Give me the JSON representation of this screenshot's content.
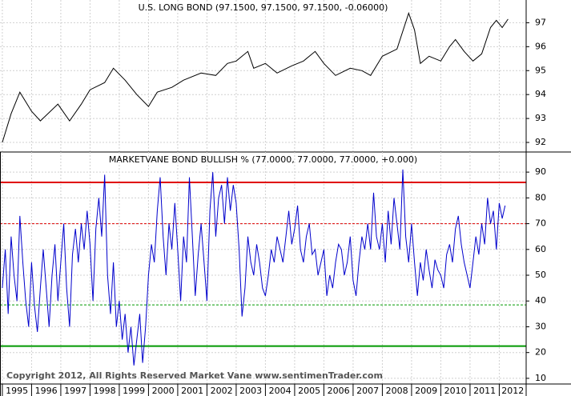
{
  "chart_data": [
    {
      "type": "line",
      "title": "U.S. LONG BOND (97.1500, 97.1500, 97.1500, -0.06000)",
      "x": [
        1995.0,
        1995.3,
        1995.6,
        1996.0,
        1996.3,
        1996.9,
        1997.3,
        1997.7,
        1998.0,
        1998.5,
        1998.8,
        1999.2,
        1999.6,
        2000.0,
        2000.3,
        2000.8,
        2001.2,
        2001.8,
        2002.3,
        2002.7,
        2003.0,
        2003.4,
        2003.6,
        2004.0,
        2004.4,
        2004.9,
        2005.3,
        2005.7,
        2006.0,
        2006.4,
        2006.9,
        2007.3,
        2007.6,
        2008.0,
        2008.5,
        2008.9,
        2009.1,
        2009.3,
        2009.6,
        2010.0,
        2010.3,
        2010.5,
        2010.8,
        2011.1,
        2011.4,
        2011.7,
        2011.9,
        2012.1,
        2012.3
      ],
      "values": [
        92.0,
        93.2,
        94.1,
        93.3,
        92.9,
        93.6,
        92.9,
        93.6,
        94.2,
        94.5,
        95.1,
        94.6,
        94.0,
        93.5,
        94.1,
        94.3,
        94.6,
        94.9,
        94.8,
        95.3,
        95.4,
        95.8,
        95.1,
        95.3,
        94.9,
        95.2,
        95.4,
        95.8,
        95.3,
        94.8,
        95.1,
        95.0,
        94.8,
        95.6,
        95.9,
        97.4,
        96.7,
        95.3,
        95.6,
        95.4,
        96.0,
        96.3,
        95.8,
        95.4,
        95.7,
        96.8,
        97.1,
        96.8,
        97.15
      ],
      "color": "#000000",
      "xlim": [
        1994.92,
        2012.92
      ],
      "xticks": [
        1995,
        1996,
        1997,
        1998,
        1999,
        2000,
        2001,
        2002,
        2003,
        2004,
        2005,
        2006,
        2007,
        2008,
        2009,
        2010,
        2011,
        2012
      ],
      "ylim": [
        91.6,
        97.95
      ],
      "yticks": [
        92,
        93,
        94,
        95,
        96,
        97
      ],
      "grid": true
    },
    {
      "type": "line",
      "title": "MARKETVANE BOND BULLISH % (77.0000, 77.0000, 77.0000, +0.000)",
      "x": [
        1995.0,
        1995.1,
        1995.2,
        1995.3,
        1995.4,
        1995.5,
        1995.6,
        1995.7,
        1995.8,
        1995.9,
        1996.0,
        1996.1,
        1996.2,
        1996.3,
        1996.4,
        1996.5,
        1996.6,
        1996.7,
        1996.8,
        1996.9,
        1997.0,
        1997.1,
        1997.2,
        1997.3,
        1997.4,
        1997.5,
        1997.6,
        1997.7,
        1997.8,
        1997.9,
        1998.0,
        1998.1,
        1998.2,
        1998.3,
        1998.4,
        1998.5,
        1998.6,
        1998.7,
        1998.8,
        1998.9,
        1999.0,
        1999.1,
        1999.2,
        1999.3,
        1999.4,
        1999.5,
        1999.6,
        1999.7,
        1999.8,
        1999.9,
        2000.0,
        2000.1,
        2000.2,
        2000.3,
        2000.4,
        2000.5,
        2000.6,
        2000.7,
        2000.8,
        2000.9,
        2001.0,
        2001.1,
        2001.2,
        2001.3,
        2001.4,
        2001.5,
        2001.6,
        2001.7,
        2001.8,
        2001.9,
        2002.0,
        2002.1,
        2002.2,
        2002.3,
        2002.4,
        2002.5,
        2002.6,
        2002.7,
        2002.8,
        2002.9,
        2003.0,
        2003.1,
        2003.2,
        2003.3,
        2003.4,
        2003.5,
        2003.6,
        2003.7,
        2003.8,
        2003.9,
        2004.0,
        2004.1,
        2004.2,
        2004.3,
        2004.4,
        2004.5,
        2004.6,
        2004.7,
        2004.8,
        2004.9,
        2005.0,
        2005.1,
        2005.2,
        2005.3,
        2005.4,
        2005.5,
        2005.6,
        2005.7,
        2005.8,
        2005.9,
        2006.0,
        2006.1,
        2006.2,
        2006.3,
        2006.4,
        2006.5,
        2006.6,
        2006.7,
        2006.8,
        2006.9,
        2007.0,
        2007.1,
        2007.2,
        2007.3,
        2007.4,
        2007.5,
        2007.6,
        2007.7,
        2007.8,
        2007.9,
        2008.0,
        2008.1,
        2008.2,
        2008.3,
        2008.4,
        2008.5,
        2008.6,
        2008.7,
        2008.8,
        2008.9,
        2009.0,
        2009.1,
        2009.2,
        2009.3,
        2009.4,
        2009.5,
        2009.6,
        2009.7,
        2009.8,
        2009.9,
        2010.0,
        2010.1,
        2010.2,
        2010.3,
        2010.4,
        2010.5,
        2010.6,
        2010.7,
        2010.8,
        2010.9,
        2011.0,
        2011.1,
        2011.2,
        2011.3,
        2011.4,
        2011.5,
        2011.6,
        2011.7,
        2011.8,
        2011.9,
        2012.0,
        2012.1,
        2012.2
      ],
      "values": [
        45,
        60,
        35,
        65,
        50,
        40,
        73,
        55,
        40,
        30,
        55,
        38,
        28,
        45,
        60,
        45,
        30,
        50,
        62,
        40,
        55,
        70,
        45,
        30,
        58,
        68,
        55,
        70,
        60,
        75,
        62,
        40,
        68,
        80,
        65,
        89,
        50,
        35,
        55,
        30,
        40,
        25,
        35,
        20,
        30,
        15,
        25,
        35,
        16,
        30,
        50,
        62,
        55,
        75,
        88,
        65,
        50,
        70,
        60,
        78,
        60,
        40,
        65,
        55,
        88,
        65,
        42,
        58,
        70,
        55,
        40,
        75,
        90,
        65,
        80,
        85,
        70,
        88,
        75,
        85,
        78,
        60,
        34,
        45,
        65,
        55,
        50,
        62,
        55,
        45,
        42,
        50,
        60,
        55,
        65,
        60,
        55,
        65,
        75,
        62,
        68,
        77,
        60,
        55,
        65,
        70,
        58,
        60,
        50,
        55,
        60,
        42,
        50,
        45,
        55,
        62,
        60,
        50,
        55,
        65,
        48,
        42,
        55,
        65,
        60,
        70,
        60,
        82,
        65,
        60,
        70,
        55,
        75,
        62,
        80,
        70,
        60,
        91,
        65,
        55,
        70,
        55,
        42,
        55,
        48,
        60,
        52,
        45,
        56,
        52,
        50,
        45,
        58,
        62,
        55,
        68,
        73,
        62,
        55,
        50,
        45,
        55,
        65,
        58,
        70,
        62,
        80,
        70,
        75,
        60,
        78,
        72,
        77
      ],
      "color": "#0000cc",
      "xlim": [
        1994.92,
        2012.92
      ],
      "xticks": [
        1995,
        1996,
        1997,
        1998,
        1999,
        2000,
        2001,
        2002,
        2003,
        2004,
        2005,
        2006,
        2007,
        2008,
        2009,
        2010,
        2011,
        2012
      ],
      "ylim": [
        7.8,
        97.8
      ],
      "yticks": [
        10,
        20,
        30,
        40,
        50,
        60,
        70,
        80,
        90
      ],
      "grid": true,
      "reference_lines": [
        {
          "value": 86,
          "color": "#e00000",
          "style": "solid"
        },
        {
          "value": 70,
          "color": "#e00000",
          "style": "dashed"
        },
        {
          "value": 38.5,
          "color": "#009900",
          "style": "dashed"
        },
        {
          "value": 22.5,
          "color": "#009900",
          "style": "solid"
        }
      ],
      "footer": "Copyright 2012, All Rights Reserved  Market Vane  www.sentimenTrader.com"
    }
  ]
}
